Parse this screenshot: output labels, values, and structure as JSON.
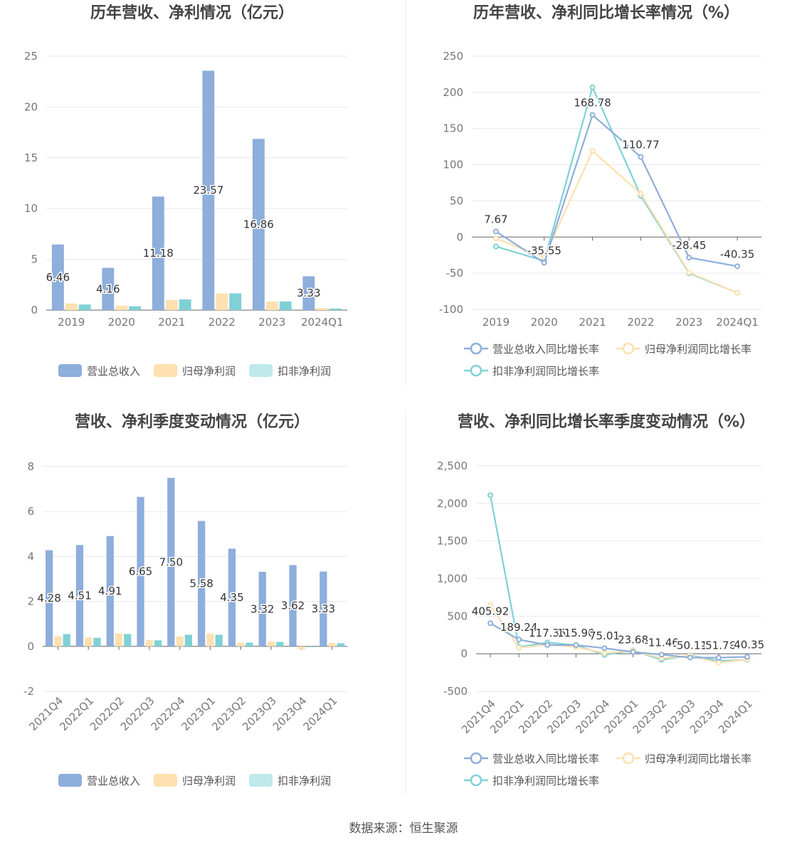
{
  "colors": {
    "revenue": "#8eaedb",
    "net_profit": "#ffe0b0",
    "deducted_profit": "#7fd1d6",
    "deducted_legend": "#bfe9ea"
  },
  "source": "数据来源：恒生聚源",
  "chart_data": [
    {
      "type": "bar",
      "title": "历年营收、净利情况（亿元）",
      "categories": [
        "2019",
        "2020",
        "2021",
        "2022",
        "2023",
        "2024Q1"
      ],
      "yticks": [
        "0",
        "5",
        "10",
        "15",
        "20",
        "25"
      ],
      "ylim": [
        0,
        25
      ],
      "series": [
        {
          "name": "营业总收入",
          "values": [
            6.46,
            4.16,
            11.18,
            23.57,
            16.86,
            3.33
          ],
          "labels": [
            "6.46",
            "4.16",
            "11.18",
            "23.57",
            "16.86",
            "3.33"
          ]
        },
        {
          "name": "归母净利润",
          "values": [
            0.65,
            0.45,
            1.0,
            1.65,
            0.85,
            0.2
          ]
        },
        {
          "name": "扣非净利润",
          "values": [
            0.55,
            0.38,
            1.05,
            1.65,
            0.85,
            0.15
          ]
        }
      ],
      "legend": "bottom"
    },
    {
      "type": "line",
      "title": "历年营收、净利同比增长率情况（%）",
      "categories": [
        "2019",
        "2020",
        "2021",
        "2022",
        "2023",
        "2024Q1"
      ],
      "yticks": [
        "-100",
        "-50",
        "0",
        "50",
        "100",
        "150",
        "200",
        "250"
      ],
      "ylim": [
        -100,
        250
      ],
      "series": [
        {
          "name": "营业总收入同比增长率",
          "values": [
            7.67,
            -35.55,
            168.78,
            110.77,
            -28.45,
            -40.35
          ],
          "labels": [
            "7.67",
            "-35.55",
            "168.78",
            "110.77",
            "-28.45",
            "-40.35"
          ]
        },
        {
          "name": "归母净利润同比增长率",
          "values": [
            -2,
            -28,
            119,
            60,
            -49,
            -77
          ]
        },
        {
          "name": "扣非净利润同比增长率",
          "values": [
            -13,
            -33,
            207,
            57,
            -50,
            -77
          ]
        }
      ],
      "legend": "bottom"
    },
    {
      "type": "bar",
      "title": "营收、净利季度变动情况（亿元）",
      "categories": [
        "2021Q4",
        "2022Q1",
        "2022Q2",
        "2022Q3",
        "2022Q4",
        "2023Q1",
        "2023Q2",
        "2023Q3",
        "2023Q4",
        "2024Q1"
      ],
      "yticks": [
        "-2",
        "0",
        "2",
        "4",
        "6",
        "8"
      ],
      "ylim": [
        -2,
        8
      ],
      "series": [
        {
          "name": "营业总收入",
          "values": [
            4.28,
            4.51,
            4.91,
            6.65,
            7.5,
            5.58,
            4.35,
            3.32,
            3.62,
            3.33
          ],
          "labels": [
            "4.28",
            "4.51",
            "4.91",
            "6.65",
            "7.50",
            "5.58",
            "4.35",
            "3.32",
            "3.62",
            "3.33"
          ]
        },
        {
          "name": "归母净利润",
          "values": [
            0.45,
            0.4,
            0.58,
            0.28,
            0.45,
            0.57,
            0.17,
            0.22,
            -0.12,
            0.15
          ]
        },
        {
          "name": "扣非净利润",
          "values": [
            0.55,
            0.38,
            0.55,
            0.27,
            0.52,
            0.52,
            0.17,
            0.2,
            -0.02,
            0.14
          ]
        }
      ],
      "legend": "bottom"
    },
    {
      "type": "line",
      "title": "营收、净利同比增长率季度变动情况（%）",
      "categories": [
        "2021Q4",
        "2022Q1",
        "2022Q2",
        "2022Q3",
        "2022Q4",
        "2023Q1",
        "2023Q2",
        "2023Q3",
        "2023Q4",
        "2024Q1"
      ],
      "yticks": [
        "-500",
        "0",
        "500",
        "1,000",
        "1,500",
        "2,000",
        "2,500"
      ],
      "ylim": [
        -500,
        2500
      ],
      "series": [
        {
          "name": "营业总收入同比增长率",
          "values": [
            405.92,
            189.24,
            117.35,
            115.9,
            75.01,
            23.68,
            -11.46,
            -50.11,
            -51.76,
            -40.35
          ],
          "labels": [
            "405.92",
            "189.24",
            "117.35",
            "115.90",
            "75.01",
            "23.68",
            "-11.46",
            "-50.11",
            "-51.76",
            "-40.35"
          ]
        },
        {
          "name": "归母净利润同比增长率",
          "values": [
            650,
            80,
            120,
            90,
            10,
            40,
            -60,
            -25,
            -120,
            -75
          ]
        },
        {
          "name": "扣非净利润同比增长率",
          "values": [
            2110,
            90,
            150,
            115,
            -15,
            45,
            -80,
            -20,
            -95,
            -80
          ]
        }
      ],
      "legend": "bottom"
    }
  ]
}
